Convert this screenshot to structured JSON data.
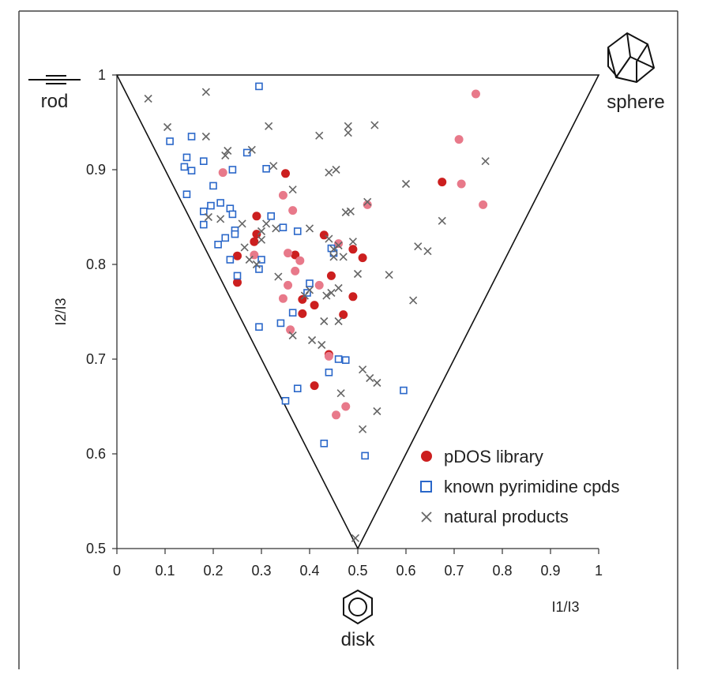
{
  "chart_data": {
    "type": "scatter",
    "xlabel": "I1/I3",
    "ylabel": "I2/I3",
    "xlim": [
      0,
      1
    ],
    "ylim": [
      0.5,
      1
    ],
    "x_ticks": [
      "0",
      "0.1",
      "0.2",
      "0.3",
      "0.4",
      "0.5",
      "0.6",
      "0.7",
      "0.8",
      "0.9",
      "1"
    ],
    "y_ticks": [
      "0.5",
      "0.6",
      "0.7",
      "0.8",
      "0.9",
      "1"
    ],
    "grid": false,
    "legend_position": "bottom-right",
    "corner_labels": {
      "rod": "rod",
      "sphere": "sphere",
      "disk": "disk"
    },
    "series": [
      {
        "name": "pDOS library",
        "marker": "filled-circle",
        "color": "#cc1f1f",
        "light_color": "#e8798a",
        "points": [
          {
            "x": 0.35,
            "y": 0.896,
            "c": "dark"
          },
          {
            "x": 0.29,
            "y": 0.851,
            "c": "dark"
          },
          {
            "x": 0.29,
            "y": 0.832,
            "c": "dark"
          },
          {
            "x": 0.285,
            "y": 0.824,
            "c": "dark"
          },
          {
            "x": 0.25,
            "y": 0.809,
            "c": "dark"
          },
          {
            "x": 0.25,
            "y": 0.781,
            "c": "dark"
          },
          {
            "x": 0.37,
            "y": 0.81,
            "c": "dark"
          },
          {
            "x": 0.43,
            "y": 0.831,
            "c": "dark"
          },
          {
            "x": 0.445,
            "y": 0.788,
            "c": "dark"
          },
          {
            "x": 0.385,
            "y": 0.763,
            "c": "dark"
          },
          {
            "x": 0.41,
            "y": 0.757,
            "c": "dark"
          },
          {
            "x": 0.385,
            "y": 0.748,
            "c": "dark"
          },
          {
            "x": 0.49,
            "y": 0.766,
            "c": "dark"
          },
          {
            "x": 0.47,
            "y": 0.747,
            "c": "dark"
          },
          {
            "x": 0.49,
            "y": 0.816,
            "c": "dark"
          },
          {
            "x": 0.51,
            "y": 0.807,
            "c": "dark"
          },
          {
            "x": 0.44,
            "y": 0.705,
            "c": "dark"
          },
          {
            "x": 0.41,
            "y": 0.672,
            "c": "dark"
          },
          {
            "x": 0.675,
            "y": 0.887,
            "c": "dark"
          },
          {
            "x": 0.22,
            "y": 0.897,
            "c": "light"
          },
          {
            "x": 0.345,
            "y": 0.873,
            "c": "light"
          },
          {
            "x": 0.365,
            "y": 0.857,
            "c": "light"
          },
          {
            "x": 0.285,
            "y": 0.81,
            "c": "light"
          },
          {
            "x": 0.355,
            "y": 0.812,
            "c": "light"
          },
          {
            "x": 0.38,
            "y": 0.804,
            "c": "light"
          },
          {
            "x": 0.37,
            "y": 0.793,
            "c": "light"
          },
          {
            "x": 0.355,
            "y": 0.778,
            "c": "light"
          },
          {
            "x": 0.345,
            "y": 0.764,
            "c": "light"
          },
          {
            "x": 0.46,
            "y": 0.822,
            "c": "light"
          },
          {
            "x": 0.36,
            "y": 0.731,
            "c": "light"
          },
          {
            "x": 0.42,
            "y": 0.778,
            "c": "light"
          },
          {
            "x": 0.44,
            "y": 0.703,
            "c": "light"
          },
          {
            "x": 0.475,
            "y": 0.65,
            "c": "light"
          },
          {
            "x": 0.455,
            "y": 0.641,
            "c": "light"
          },
          {
            "x": 0.52,
            "y": 0.863,
            "c": "light"
          },
          {
            "x": 0.71,
            "y": 0.932,
            "c": "light"
          },
          {
            "x": 0.745,
            "y": 0.98,
            "c": "light"
          },
          {
            "x": 0.715,
            "y": 0.885,
            "c": "light"
          },
          {
            "x": 0.76,
            "y": 0.863,
            "c": "light"
          }
        ]
      },
      {
        "name": "known pyrimidine cpds",
        "marker": "open-square",
        "color": "#2a67c9",
        "points": [
          {
            "x": 0.295,
            "y": 0.988
          },
          {
            "x": 0.11,
            "y": 0.93
          },
          {
            "x": 0.155,
            "y": 0.935
          },
          {
            "x": 0.145,
            "y": 0.913
          },
          {
            "x": 0.14,
            "y": 0.903
          },
          {
            "x": 0.155,
            "y": 0.899
          },
          {
            "x": 0.18,
            "y": 0.909
          },
          {
            "x": 0.24,
            "y": 0.9
          },
          {
            "x": 0.27,
            "y": 0.918
          },
          {
            "x": 0.31,
            "y": 0.901
          },
          {
            "x": 0.145,
            "y": 0.874
          },
          {
            "x": 0.2,
            "y": 0.883
          },
          {
            "x": 0.18,
            "y": 0.856
          },
          {
            "x": 0.195,
            "y": 0.862
          },
          {
            "x": 0.215,
            "y": 0.865
          },
          {
            "x": 0.18,
            "y": 0.842
          },
          {
            "x": 0.235,
            "y": 0.859
          },
          {
            "x": 0.24,
            "y": 0.853
          },
          {
            "x": 0.245,
            "y": 0.836
          },
          {
            "x": 0.245,
            "y": 0.832
          },
          {
            "x": 0.21,
            "y": 0.821
          },
          {
            "x": 0.225,
            "y": 0.828
          },
          {
            "x": 0.235,
            "y": 0.805
          },
          {
            "x": 0.25,
            "y": 0.788
          },
          {
            "x": 0.3,
            "y": 0.805
          },
          {
            "x": 0.295,
            "y": 0.795
          },
          {
            "x": 0.32,
            "y": 0.851
          },
          {
            "x": 0.345,
            "y": 0.839
          },
          {
            "x": 0.375,
            "y": 0.835
          },
          {
            "x": 0.4,
            "y": 0.78
          },
          {
            "x": 0.295,
            "y": 0.734
          },
          {
            "x": 0.34,
            "y": 0.738
          },
          {
            "x": 0.365,
            "y": 0.749
          },
          {
            "x": 0.395,
            "y": 0.77
          },
          {
            "x": 0.45,
            "y": 0.812
          },
          {
            "x": 0.445,
            "y": 0.817
          },
          {
            "x": 0.44,
            "y": 0.686
          },
          {
            "x": 0.46,
            "y": 0.7
          },
          {
            "x": 0.475,
            "y": 0.699
          },
          {
            "x": 0.375,
            "y": 0.669
          },
          {
            "x": 0.35,
            "y": 0.656
          },
          {
            "x": 0.43,
            "y": 0.611
          },
          {
            "x": 0.515,
            "y": 0.598
          },
          {
            "x": 0.595,
            "y": 0.667
          }
        ]
      },
      {
        "name": "natural products",
        "marker": "x",
        "color": "#666666",
        "points": [
          {
            "x": 0.065,
            "y": 0.975
          },
          {
            "x": 0.185,
            "y": 0.982
          },
          {
            "x": 0.105,
            "y": 0.945
          },
          {
            "x": 0.185,
            "y": 0.935
          },
          {
            "x": 0.315,
            "y": 0.946
          },
          {
            "x": 0.42,
            "y": 0.936
          },
          {
            "x": 0.48,
            "y": 0.946
          },
          {
            "x": 0.48,
            "y": 0.939
          },
          {
            "x": 0.535,
            "y": 0.947
          },
          {
            "x": 0.23,
            "y": 0.92
          },
          {
            "x": 0.28,
            "y": 0.921
          },
          {
            "x": 0.225,
            "y": 0.915
          },
          {
            "x": 0.325,
            "y": 0.904
          },
          {
            "x": 0.44,
            "y": 0.897
          },
          {
            "x": 0.455,
            "y": 0.9
          },
          {
            "x": 0.6,
            "y": 0.885
          },
          {
            "x": 0.765,
            "y": 0.909
          },
          {
            "x": 0.365,
            "y": 0.879
          },
          {
            "x": 0.52,
            "y": 0.866
          },
          {
            "x": 0.475,
            "y": 0.855
          },
          {
            "x": 0.485,
            "y": 0.856
          },
          {
            "x": 0.215,
            "y": 0.848
          },
          {
            "x": 0.26,
            "y": 0.843
          },
          {
            "x": 0.19,
            "y": 0.85
          },
          {
            "x": 0.33,
            "y": 0.838
          },
          {
            "x": 0.31,
            "y": 0.843
          },
          {
            "x": 0.3,
            "y": 0.835
          },
          {
            "x": 0.3,
            "y": 0.826
          },
          {
            "x": 0.265,
            "y": 0.818
          },
          {
            "x": 0.275,
            "y": 0.805
          },
          {
            "x": 0.29,
            "y": 0.8
          },
          {
            "x": 0.4,
            "y": 0.838
          },
          {
            "x": 0.44,
            "y": 0.827
          },
          {
            "x": 0.45,
            "y": 0.816
          },
          {
            "x": 0.46,
            "y": 0.82
          },
          {
            "x": 0.49,
            "y": 0.824
          },
          {
            "x": 0.45,
            "y": 0.808
          },
          {
            "x": 0.47,
            "y": 0.808
          },
          {
            "x": 0.5,
            "y": 0.79
          },
          {
            "x": 0.565,
            "y": 0.789
          },
          {
            "x": 0.675,
            "y": 0.846
          },
          {
            "x": 0.625,
            "y": 0.819
          },
          {
            "x": 0.645,
            "y": 0.814
          },
          {
            "x": 0.615,
            "y": 0.762
          },
          {
            "x": 0.335,
            "y": 0.787
          },
          {
            "x": 0.4,
            "y": 0.773
          },
          {
            "x": 0.39,
            "y": 0.767
          },
          {
            "x": 0.435,
            "y": 0.767
          },
          {
            "x": 0.445,
            "y": 0.77
          },
          {
            "x": 0.46,
            "y": 0.775
          },
          {
            "x": 0.43,
            "y": 0.74
          },
          {
            "x": 0.46,
            "y": 0.74
          },
          {
            "x": 0.365,
            "y": 0.725
          },
          {
            "x": 0.405,
            "y": 0.72
          },
          {
            "x": 0.425,
            "y": 0.715
          },
          {
            "x": 0.51,
            "y": 0.689
          },
          {
            "x": 0.525,
            "y": 0.68
          },
          {
            "x": 0.54,
            "y": 0.675
          },
          {
            "x": 0.465,
            "y": 0.664
          },
          {
            "x": 0.54,
            "y": 0.645
          },
          {
            "x": 0.51,
            "y": 0.626
          },
          {
            "x": 0.495,
            "y": 0.511
          }
        ]
      }
    ]
  }
}
